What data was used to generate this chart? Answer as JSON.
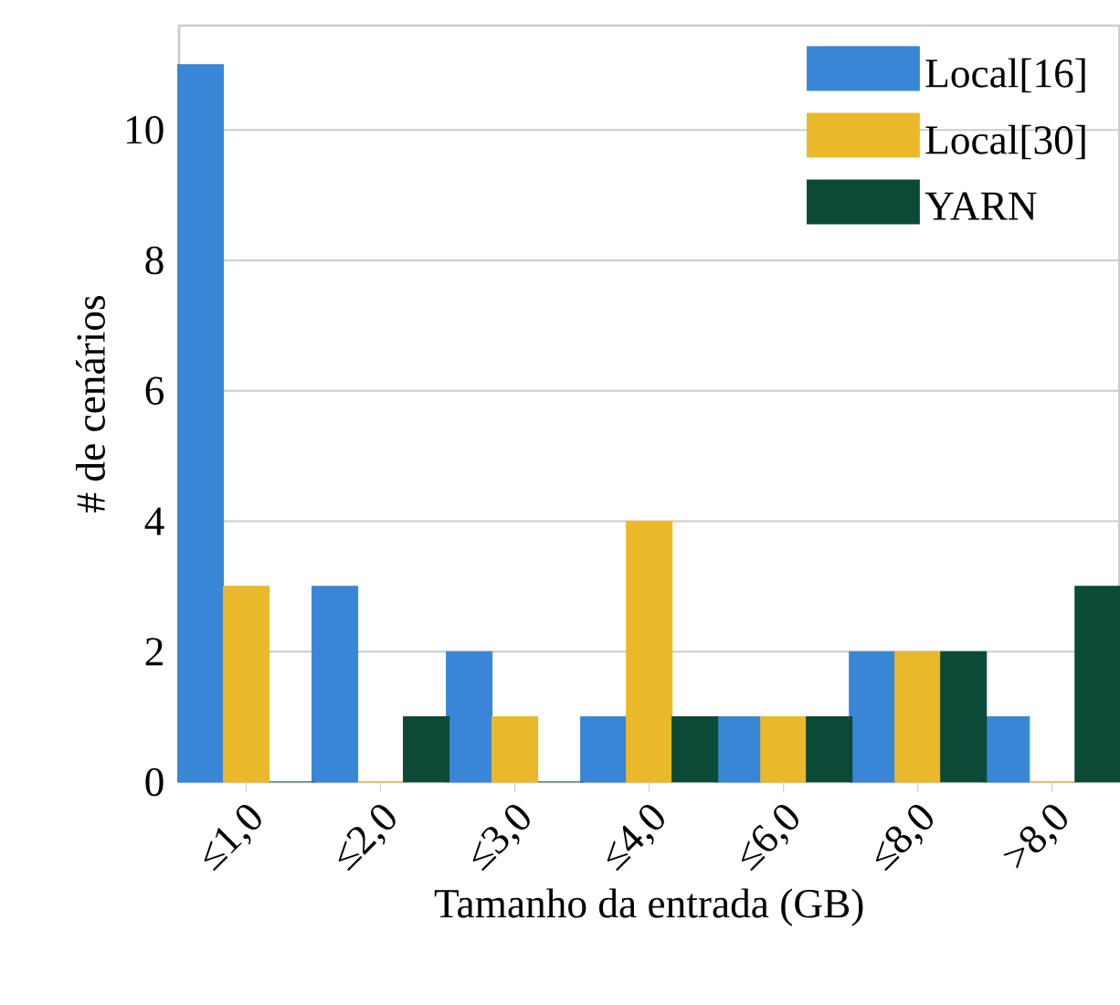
{
  "chart_data": {
    "type": "bar",
    "xlabel": "Tamanho da entrada (GB)",
    "ylabel": "# de cenários",
    "categories": [
      "≤1,0",
      "≤2,0",
      "≤3,0",
      "≤4,0",
      "≤6,0",
      "≤8,0",
      ">8,0"
    ],
    "series": [
      {
        "name": "Local[16]",
        "color": "#3a86d6",
        "values": [
          11,
          3,
          2,
          1,
          1,
          2,
          1
        ]
      },
      {
        "name": "Local[30]",
        "color": "#e9b92b",
        "values": [
          3,
          0,
          1,
          4,
          1,
          2,
          0
        ]
      },
      {
        "name": "YARN",
        "color": "#0b4a36",
        "values": [
          0,
          1,
          0,
          1,
          1,
          2,
          3
        ]
      }
    ],
    "ylim": [
      0,
      11.6
    ],
    "yticks": [
      0,
      2,
      4,
      6,
      8,
      10
    ],
    "grid": "y",
    "legend": "top right"
  }
}
